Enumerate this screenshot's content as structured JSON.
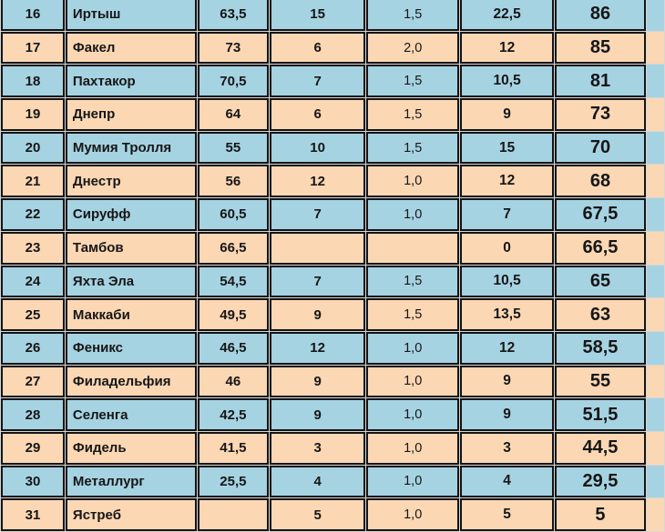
{
  "table": {
    "rows": [
      {
        "rank": "16",
        "team": "Иртыш",
        "col3": "63,5",
        "col4": "15",
        "col5": "1,5",
        "col6": "22,5",
        "total": "86"
      },
      {
        "rank": "17",
        "team": "Факел",
        "col3": "73",
        "col4": "6",
        "col5": "2,0",
        "col6": "12",
        "total": "85"
      },
      {
        "rank": "18",
        "team": "Пахтакор",
        "col3": "70,5",
        "col4": "7",
        "col5": "1,5",
        "col6": "10,5",
        "total": "81"
      },
      {
        "rank": "19",
        "team": "Днепр",
        "col3": "64",
        "col4": "6",
        "col5": "1,5",
        "col6": "9",
        "total": "73"
      },
      {
        "rank": "20",
        "team": "Мумия Тролля",
        "col3": "55",
        "col4": "10",
        "col5": "1,5",
        "col6": "15",
        "total": "70"
      },
      {
        "rank": "21",
        "team": "Днестр",
        "col3": "56",
        "col4": "12",
        "col5": "1,0",
        "col6": "12",
        "total": "68"
      },
      {
        "rank": "22",
        "team": "Сируфф",
        "col3": "60,5",
        "col4": "7",
        "col5": "1,0",
        "col6": "7",
        "total": "67,5"
      },
      {
        "rank": "23",
        "team": "Тамбов",
        "col3": "66,5",
        "col4": "",
        "col5": "",
        "col6": "0",
        "total": "66,5"
      },
      {
        "rank": "24",
        "team": "Яхта Эла",
        "col3": "54,5",
        "col4": "7",
        "col5": "1,5",
        "col6": "10,5",
        "total": "65"
      },
      {
        "rank": "25",
        "team": "Маккаби",
        "col3": "49,5",
        "col4": "9",
        "col5": "1,5",
        "col6": "13,5",
        "total": "63"
      },
      {
        "rank": "26",
        "team": "Феникс",
        "col3": "46,5",
        "col4": "12",
        "col5": "1,0",
        "col6": "12",
        "total": "58,5"
      },
      {
        "rank": "27",
        "team": "Филадельфия",
        "col3": "46",
        "col4": "9",
        "col5": "1,0",
        "col6": "9",
        "total": "55"
      },
      {
        "rank": "28",
        "team": "Селенга",
        "col3": "42,5",
        "col4": "9",
        "col5": "1,0",
        "col6": "9",
        "total": "51,5"
      },
      {
        "rank": "29",
        "team": "Фидель",
        "col3": "41,5",
        "col4": "3",
        "col5": "1,0",
        "col6": "3",
        "total": "44,5"
      },
      {
        "rank": "30",
        "team": "Металлург",
        "col3": "25,5",
        "col4": "4",
        "col5": "1,0",
        "col6": "4",
        "total": "29,5"
      },
      {
        "rank": "31",
        "team": "Ястреб",
        "col3": "",
        "col4": "5",
        "col5": "1,0",
        "col6": "5",
        "total": "5"
      }
    ]
  },
  "colors": {
    "row_blue": "#a6d3e2",
    "row_peach": "#fbd7b4",
    "border": "#141414",
    "grid_gap": "#d6d6d6",
    "text": "#161616"
  }
}
